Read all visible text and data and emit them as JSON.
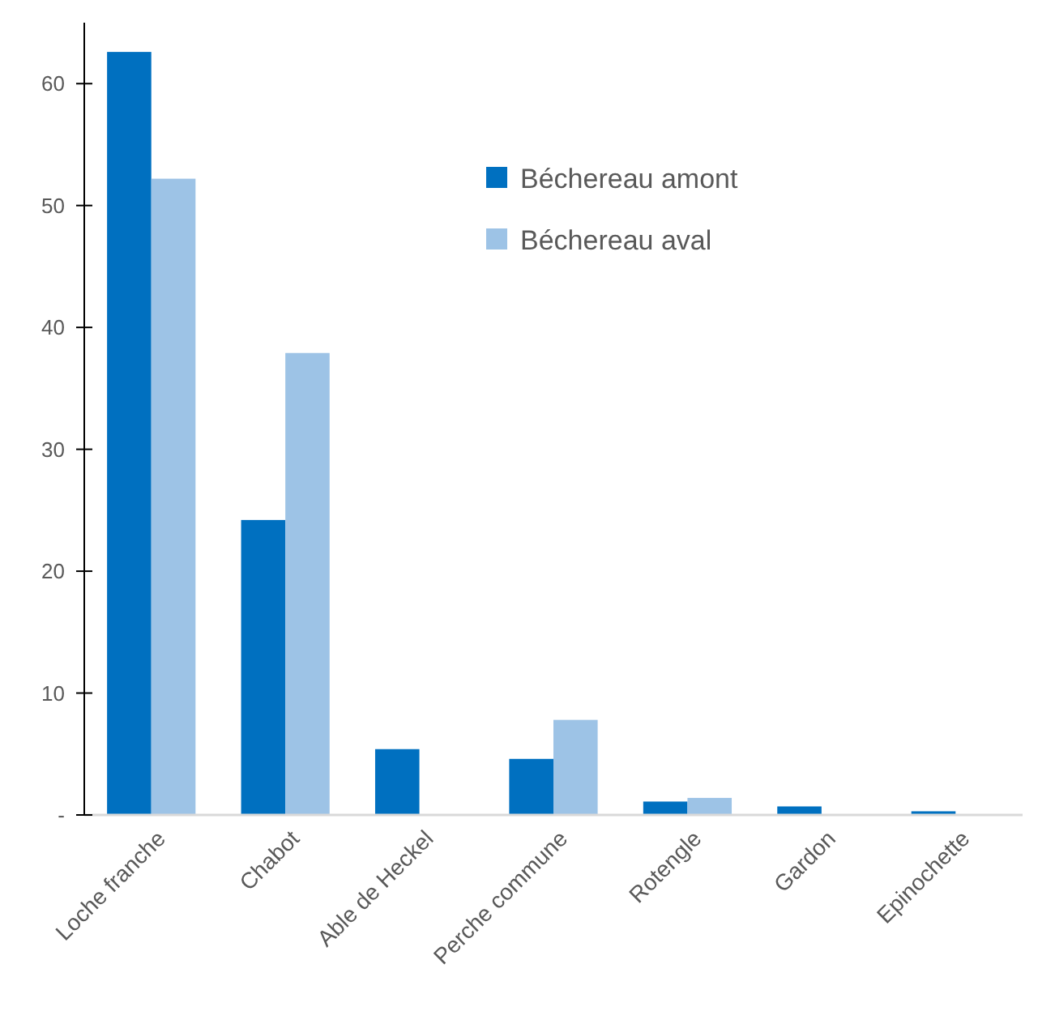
{
  "chart_data": {
    "type": "bar",
    "categories": [
      "Loche franche",
      "Chabot",
      "Able de Heckel",
      "Perche commune",
      "Rotengle",
      "Gardon",
      "Epinochette"
    ],
    "series": [
      {
        "name": "Béchereau amont",
        "color": "#0070c0",
        "values": [
          62.6,
          24.2,
          5.4,
          4.6,
          1.1,
          0.7,
          0.3
        ]
      },
      {
        "name": "Béchereau aval",
        "color": "#9dc3e6",
        "values": [
          52.2,
          37.9,
          null,
          7.8,
          1.4,
          null,
          null
        ]
      }
    ],
    "ylim": [
      0,
      65
    ],
    "yticks": [
      {
        "value": 0,
        "label": "-"
      },
      10,
      20,
      30,
      40,
      50,
      60
    ],
    "grid": false,
    "legend": "top right"
  }
}
